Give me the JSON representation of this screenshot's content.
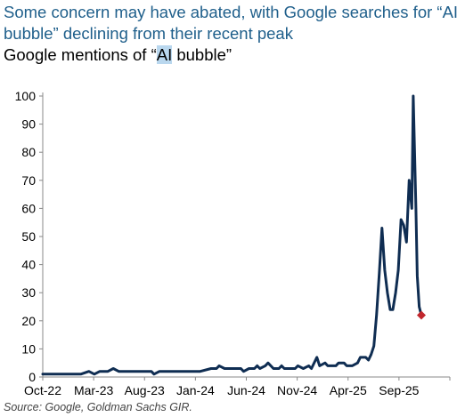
{
  "headline": "Some concern may have abated, with Google searches for “AI bubble” declining from their recent peak",
  "subtitle": {
    "prefix": "Google mentions of “",
    "highlight": "AI",
    "suffix": " bubble”"
  },
  "source": "Source: Google, Goldman Sachs GIR.",
  "colors": {
    "headline": "#1f5f8b",
    "line": "#0f2d52",
    "marker": "#c1272d",
    "highlight": "#b9d7ee"
  },
  "chart_data": {
    "type": "line",
    "title": "Google mentions of “AI bubble”",
    "xlabel": "",
    "ylabel": "",
    "ylim": [
      0,
      100
    ],
    "yticks": [
      0,
      10,
      20,
      30,
      40,
      50,
      60,
      70,
      80,
      90,
      100
    ],
    "xticks": [
      "Oct-22",
      "Mar-23",
      "Aug-23",
      "Jan-24",
      "Jun-24",
      "Nov-24",
      "Apr-25",
      "Sep-25"
    ],
    "grid": false,
    "legend": "none",
    "series": [
      {
        "values": [
          [
            0,
            1
          ],
          [
            9,
            1
          ],
          [
            14,
            1
          ],
          [
            17,
            2
          ],
          [
            19,
            1
          ],
          [
            21,
            2
          ],
          [
            24,
            2
          ],
          [
            26,
            3
          ],
          [
            28,
            2
          ],
          [
            40,
            2
          ],
          [
            41,
            1
          ],
          [
            43,
            2
          ],
          [
            48,
            2
          ],
          [
            58,
            2
          ],
          [
            62,
            3
          ],
          [
            64,
            3
          ],
          [
            65,
            4
          ],
          [
            67,
            3
          ],
          [
            73,
            3
          ],
          [
            74,
            2
          ],
          [
            76,
            3
          ],
          [
            78,
            3
          ],
          [
            79,
            4
          ],
          [
            80,
            3
          ],
          [
            82,
            4
          ],
          [
            83,
            5
          ],
          [
            85,
            3
          ],
          [
            87,
            3
          ],
          [
            88,
            4
          ],
          [
            89,
            3
          ],
          [
            93,
            3
          ],
          [
            94,
            4
          ],
          [
            96,
            3
          ],
          [
            98,
            4
          ],
          [
            99,
            3
          ],
          [
            101,
            7
          ],
          [
            102,
            4
          ],
          [
            104,
            5
          ],
          [
            105,
            4
          ],
          [
            108,
            4
          ],
          [
            109,
            5
          ],
          [
            111,
            5
          ],
          [
            112,
            4
          ],
          [
            114,
            4
          ],
          [
            116,
            5
          ],
          [
            117,
            7
          ],
          [
            119,
            7
          ],
          [
            120,
            6
          ],
          [
            121,
            8
          ],
          [
            122,
            11
          ],
          [
            123,
            22
          ],
          [
            124,
            37
          ],
          [
            125,
            53
          ],
          [
            126,
            38
          ],
          [
            127,
            30
          ],
          [
            128,
            24
          ],
          [
            129,
            24
          ],
          [
            130,
            30
          ],
          [
            131,
            38
          ],
          [
            132,
            56
          ],
          [
            133,
            54
          ],
          [
            134,
            48
          ],
          [
            135,
            70
          ],
          [
            136,
            60
          ],
          [
            136.5,
            100
          ],
          [
            137.5,
            60
          ],
          [
            138,
            36
          ],
          [
            138.7,
            25
          ],
          [
            139.5,
            22
          ]
        ],
        "last_point_marker": true
      }
    ]
  }
}
